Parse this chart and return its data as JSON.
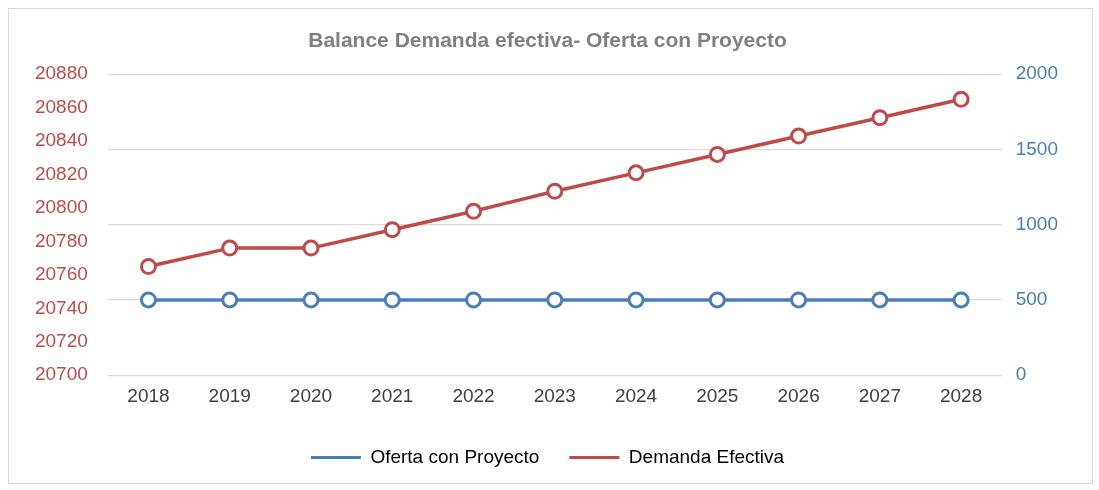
{
  "chart_data": {
    "type": "line",
    "title": "Balance Demanda efectiva- Oferta con Proyecto",
    "categories": [
      "2018",
      "2019",
      "2020",
      "2021",
      "2022",
      "2023",
      "2024",
      "2025",
      "2026",
      "2027",
      "2028"
    ],
    "series": [
      {
        "name": "Oferta con Proyecto",
        "color": "#4a7ebb",
        "axis": "y2",
        "values": [
          500,
          500,
          500,
          500,
          500,
          500,
          500,
          500,
          500,
          500,
          500
        ]
      },
      {
        "name": "Demanda Efectiva",
        "color": "#be4b48",
        "values": [
          20765,
          20776,
          20776,
          20787,
          20798,
          20810,
          20821,
          20832,
          20843,
          20854,
          20865
        ]
      }
    ],
    "ylim": [
      20700,
      20880
    ],
    "yticks": [
      20700,
      20720,
      20740,
      20760,
      20780,
      20800,
      20820,
      20840,
      20860,
      20880
    ],
    "y2lim": [
      0,
      2000
    ],
    "y2ticks": [
      0,
      500,
      1000,
      1500,
      2000
    ],
    "grid": "y",
    "legend": "bottom",
    "marker": "circle",
    "line_style": "solid"
  }
}
